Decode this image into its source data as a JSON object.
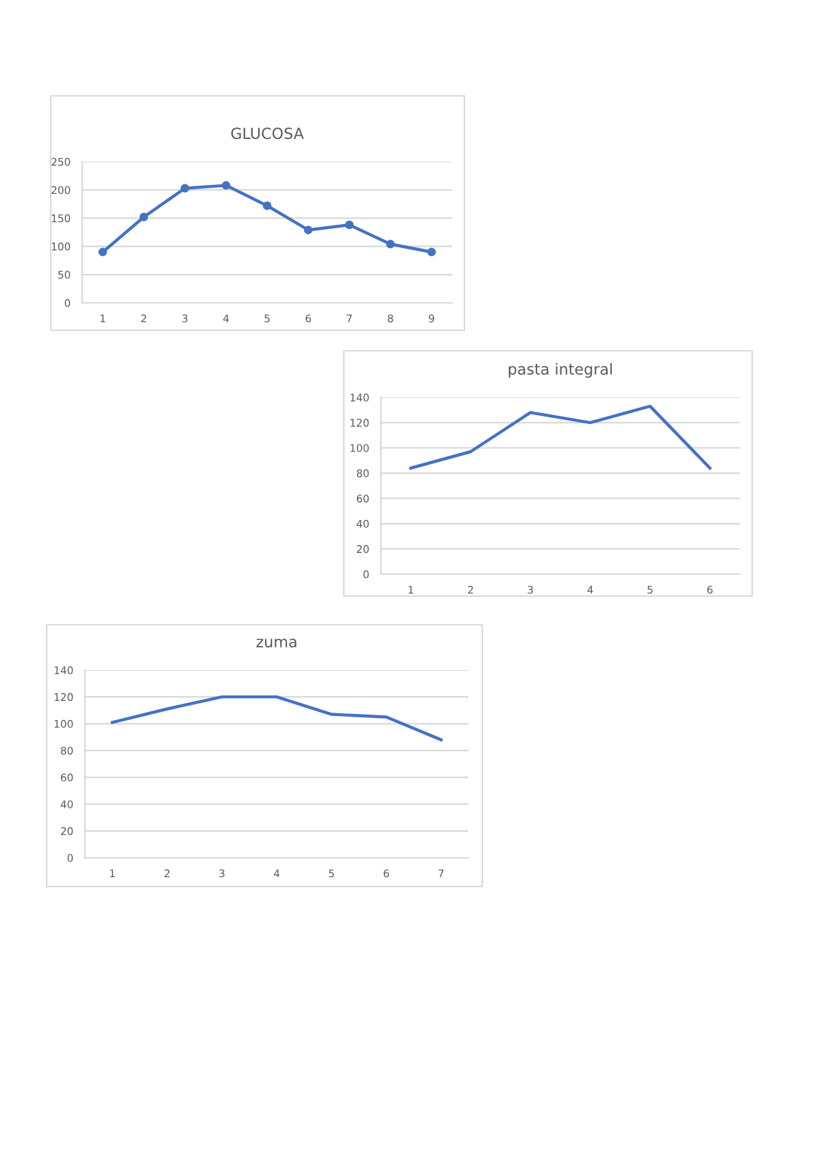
{
  "chart_data": [
    {
      "type": "line",
      "title": "GLUCOSA",
      "categories": [
        "1",
        "2",
        "3",
        "4",
        "5",
        "6",
        "7",
        "8",
        "9"
      ],
      "series": [
        {
          "color": "#4472c4",
          "values": [
            90,
            152,
            203,
            208,
            172,
            129,
            138,
            104,
            90
          ]
        }
      ],
      "ylim": [
        0,
        250
      ],
      "yticks": [
        0,
        50,
        100,
        150,
        200,
        250
      ],
      "grid": "y",
      "marker": "circle",
      "line_style": "solid"
    },
    {
      "type": "line",
      "title": "pasta integral",
      "categories": [
        "1",
        "2",
        "3",
        "4",
        "5",
        "6"
      ],
      "series": [
        {
          "color": "#4472c4",
          "values": [
            84,
            97,
            128,
            120,
            133,
            84
          ]
        }
      ],
      "ylim": [
        0,
        140
      ],
      "yticks": [
        0,
        20,
        40,
        60,
        80,
        100,
        120,
        140
      ],
      "grid": "y",
      "marker": "none",
      "line_style": "solid"
    },
    {
      "type": "line",
      "title": "zuma",
      "categories": [
        "1",
        "2",
        "3",
        "4",
        "5",
        "6",
        "7"
      ],
      "series": [
        {
          "color": "#4472c4",
          "values": [
            101,
            111,
            120,
            120,
            107,
            105,
            88
          ]
        }
      ],
      "ylim": [
        0,
        140
      ],
      "yticks": [
        0,
        20,
        40,
        60,
        80,
        100,
        120,
        140
      ],
      "grid": "y",
      "marker": "none",
      "line_style": "solid"
    }
  ]
}
